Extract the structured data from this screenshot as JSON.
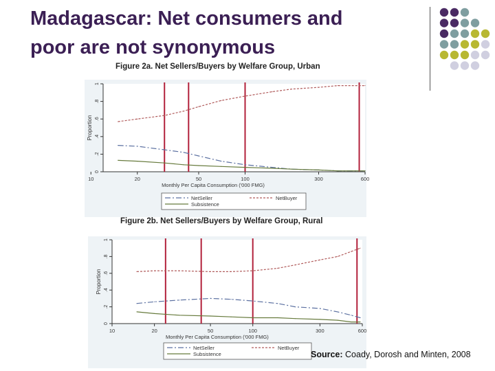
{
  "slide": {
    "title_line1": "Madagascar: Net consumers and",
    "title_line2": "poor are not synonymous",
    "source_label": "Source:",
    "source_text": "Coady, Dorosh and Minten, 2008",
    "palette": [
      "#4a2a63",
      "#7f9ea0",
      "#b8b832",
      "#d0cfe0"
    ]
  },
  "chart_data": [
    {
      "type": "line",
      "title": "Figure 2a. Net Sellers/Buyers by Welfare Group, Urban",
      "xlabel": "Monthly Per Capita Consumption ('000 FMG)",
      "ylabel": "Proportion",
      "x_scale": "log",
      "xlim": [
        12,
        600
      ],
      "ylim": [
        0,
        1
      ],
      "xticks": [
        10,
        20,
        50,
        100,
        300,
        600
      ],
      "xtick_labels": [
        "10",
        "20",
        "50",
        "100",
        "300",
        "600"
      ],
      "yticks": [
        0,
        0.2,
        0.4,
        0.6,
        0.8,
        1
      ],
      "ytick_labels": [
        "0",
        ".2",
        ".4",
        ".6",
        ".8",
        "1"
      ],
      "vlines": [
        30,
        43,
        100,
        550
      ],
      "x": [
        15,
        20,
        30,
        40,
        50,
        70,
        100,
        150,
        200,
        300,
        400,
        600
      ],
      "series": [
        {
          "name": "NetSeller",
          "color": "#5a6fa0",
          "dash": "8,3,2,3",
          "values": [
            0.3,
            0.29,
            0.25,
            0.22,
            0.18,
            0.12,
            0.08,
            0.05,
            0.03,
            0.02,
            0.01,
            0.01
          ]
        },
        {
          "name": "NetBuyer",
          "color": "#b05a5a",
          "dash": "3,2",
          "values": [
            0.57,
            0.6,
            0.64,
            0.69,
            0.74,
            0.81,
            0.86,
            0.91,
            0.94,
            0.96,
            0.98,
            0.98
          ]
        },
        {
          "name": "Subsistence",
          "color": "#667a3c",
          "dash": "",
          "values": [
            0.13,
            0.12,
            0.1,
            0.08,
            0.07,
            0.06,
            0.05,
            0.04,
            0.03,
            0.02,
            0.01,
            0.01
          ]
        }
      ],
      "legend": "bottom"
    },
    {
      "type": "line",
      "title": "Figure 2b. Net Sellers/Buyers by Welfare Group, Rural",
      "xlabel": "Monthly Per Capita Consumption ('000 FMG)",
      "ylabel": "Proportion",
      "x_scale": "log",
      "xlim": [
        10,
        600
      ],
      "ylim": [
        0,
        1
      ],
      "xticks": [
        10,
        20,
        50,
        100,
        300,
        600
      ],
      "xtick_labels": [
        "10",
        "20",
        "50",
        "100",
        "300",
        "600"
      ],
      "yticks": [
        0,
        0.2,
        0.4,
        0.6,
        0.8,
        1
      ],
      "ytick_labels": [
        "0",
        ".2",
        ".4",
        ".6",
        ".8",
        "1"
      ],
      "vlines": [
        24,
        43,
        100,
        550
      ],
      "x": [
        15,
        20,
        30,
        50,
        70,
        100,
        150,
        200,
        300,
        400,
        500,
        580
      ],
      "series": [
        {
          "name": "NetSeller",
          "color": "#5a6fa0",
          "dash": "8,3,2,3",
          "values": [
            0.24,
            0.26,
            0.28,
            0.3,
            0.29,
            0.27,
            0.24,
            0.2,
            0.18,
            0.14,
            0.1,
            0.07
          ]
        },
        {
          "name": "NetBuyer",
          "color": "#b05a5a",
          "dash": "3,2",
          "values": [
            0.62,
            0.63,
            0.63,
            0.62,
            0.62,
            0.63,
            0.66,
            0.7,
            0.76,
            0.8,
            0.86,
            0.9
          ]
        },
        {
          "name": "Subsistence",
          "color": "#667a3c",
          "dash": "",
          "values": [
            0.14,
            0.12,
            0.1,
            0.09,
            0.08,
            0.07,
            0.07,
            0.06,
            0.05,
            0.04,
            0.02,
            0.02
          ]
        }
      ],
      "legend": "bottom"
    }
  ]
}
